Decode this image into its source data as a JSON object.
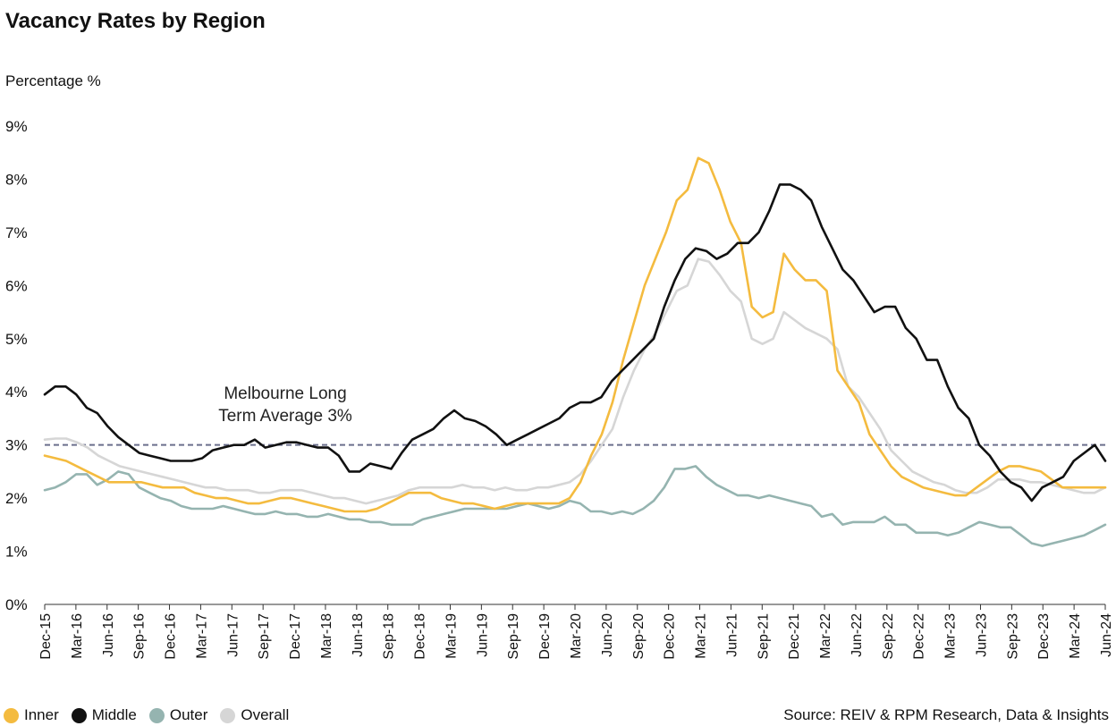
{
  "chart_data": {
    "type": "line",
    "title": "Vacancy Rates by Region",
    "ylabel": "Percentage %",
    "xlabel": "",
    "ylim": [
      0,
      9
    ],
    "yticks": [
      0,
      1,
      2,
      3,
      4,
      5,
      6,
      7,
      8,
      9
    ],
    "ytick_labels": [
      "0%",
      "1%",
      "2%",
      "3%",
      "4%",
      "5%",
      "6%",
      "7%",
      "8%",
      "9%"
    ],
    "xtick_labels": [
      "Dec-15",
      "Mar-16",
      "Jun-16",
      "Sep-16",
      "Dec-16",
      "Mar-17",
      "Jun-17",
      "Sep-17",
      "Dec-17",
      "Mar-18",
      "Jun-18",
      "Sep-18",
      "Dec-18",
      "Mar-19",
      "Jun-19",
      "Sep-19",
      "Dec-19",
      "Mar-20",
      "Jun-20",
      "Sep-20",
      "Dec-20",
      "Mar-21",
      "Jun-21",
      "Sep-21",
      "Dec-21",
      "Mar-22",
      "Jun-22",
      "Sep-22",
      "Dec-22",
      "Mar-23",
      "Jun-23",
      "Sep-23",
      "Dec-23",
      "Mar-24",
      "Jun-24"
    ],
    "grid": false,
    "legend_position": "bottom-left",
    "reference_line": {
      "value": 3.0,
      "label_line1": "Melbourne Long",
      "label_line2": "Term Average 3%",
      "color": "#6b6f8c"
    },
    "series": [
      {
        "name": "Inner",
        "color": "#f4bb3f",
        "values": [
          2.8,
          2.75,
          2.7,
          2.6,
          2.5,
          2.4,
          2.3,
          2.3,
          2.3,
          2.3,
          2.25,
          2.2,
          2.2,
          2.2,
          2.1,
          2.05,
          2.0,
          2.0,
          1.95,
          1.9,
          1.9,
          1.95,
          2.0,
          2.0,
          1.95,
          1.9,
          1.85,
          1.8,
          1.75,
          1.75,
          1.75,
          1.8,
          1.9,
          2.0,
          2.1,
          2.1,
          2.1,
          2.0,
          1.95,
          1.9,
          1.9,
          1.85,
          1.8,
          1.85,
          1.9,
          1.9,
          1.9,
          1.9,
          1.9,
          2.0,
          2.3,
          2.8,
          3.2,
          3.8,
          4.6,
          5.3,
          6.0,
          6.5,
          7.0,
          7.6,
          7.8,
          8.4,
          8.3,
          7.8,
          7.2,
          6.8,
          5.6,
          5.4,
          5.5,
          6.6,
          6.3,
          6.1,
          6.1,
          5.9,
          4.4,
          4.1,
          3.8,
          3.2,
          2.9,
          2.6,
          2.4,
          2.3,
          2.2,
          2.15,
          2.1,
          2.05,
          2.05,
          2.2,
          2.35,
          2.5,
          2.6,
          2.6,
          2.55,
          2.5,
          2.35,
          2.2,
          2.2,
          2.2,
          2.2,
          2.2
        ]
      },
      {
        "name": "Middle",
        "color": "#111111",
        "values": [
          3.95,
          4.1,
          4.1,
          3.95,
          3.7,
          3.6,
          3.35,
          3.15,
          3.0,
          2.85,
          2.8,
          2.75,
          2.7,
          2.7,
          2.7,
          2.75,
          2.9,
          2.95,
          3.0,
          3.0,
          3.1,
          2.95,
          3.0,
          3.05,
          3.05,
          3.0,
          2.95,
          2.95,
          2.8,
          2.5,
          2.5,
          2.65,
          2.6,
          2.55,
          2.85,
          3.1,
          3.2,
          3.3,
          3.5,
          3.65,
          3.5,
          3.45,
          3.35,
          3.2,
          3.0,
          3.1,
          3.2,
          3.3,
          3.4,
          3.5,
          3.7,
          3.8,
          3.8,
          3.9,
          4.2,
          4.4,
          4.6,
          4.8,
          5.0,
          5.6,
          6.1,
          6.5,
          6.7,
          6.65,
          6.5,
          6.6,
          6.8,
          6.8,
          7.0,
          7.4,
          7.9,
          7.9,
          7.8,
          7.6,
          7.1,
          6.7,
          6.3,
          6.1,
          5.8,
          5.5,
          5.6,
          5.6,
          5.2,
          5.0,
          4.6,
          4.6,
          4.1,
          3.7,
          3.5,
          3.0,
          2.8,
          2.5,
          2.3,
          2.2,
          1.95,
          2.2,
          2.3,
          2.4,
          2.7,
          2.85,
          3.0,
          2.7
        ]
      },
      {
        "name": "Outer",
        "color": "#95b4b0",
        "values": [
          2.15,
          2.2,
          2.3,
          2.45,
          2.45,
          2.25,
          2.35,
          2.5,
          2.45,
          2.2,
          2.1,
          2.0,
          1.95,
          1.85,
          1.8,
          1.8,
          1.8,
          1.85,
          1.8,
          1.75,
          1.7,
          1.7,
          1.75,
          1.7,
          1.7,
          1.65,
          1.65,
          1.7,
          1.65,
          1.6,
          1.6,
          1.55,
          1.55,
          1.5,
          1.5,
          1.5,
          1.6,
          1.65,
          1.7,
          1.75,
          1.8,
          1.8,
          1.8,
          1.8,
          1.8,
          1.85,
          1.9,
          1.85,
          1.8,
          1.85,
          1.95,
          1.9,
          1.75,
          1.75,
          1.7,
          1.75,
          1.7,
          1.8,
          1.95,
          2.2,
          2.55,
          2.55,
          2.6,
          2.4,
          2.25,
          2.15,
          2.05,
          2.05,
          2.0,
          2.05,
          2.0,
          1.95,
          1.9,
          1.85,
          1.65,
          1.7,
          1.5,
          1.55,
          1.55,
          1.55,
          1.65,
          1.5,
          1.5,
          1.35,
          1.35,
          1.35,
          1.3,
          1.35,
          1.45,
          1.55,
          1.5,
          1.45,
          1.45,
          1.3,
          1.15,
          1.1,
          1.15,
          1.2,
          1.25,
          1.3,
          1.4,
          1.5
        ]
      },
      {
        "name": "Overall",
        "color": "#d6d6d6",
        "values": [
          3.1,
          3.12,
          3.12,
          3.05,
          2.95,
          2.8,
          2.7,
          2.6,
          2.55,
          2.5,
          2.45,
          2.4,
          2.35,
          2.3,
          2.25,
          2.2,
          2.2,
          2.15,
          2.15,
          2.15,
          2.1,
          2.1,
          2.15,
          2.15,
          2.15,
          2.1,
          2.05,
          2.0,
          2.0,
          1.95,
          1.9,
          1.95,
          2.0,
          2.05,
          2.15,
          2.2,
          2.2,
          2.2,
          2.2,
          2.25,
          2.2,
          2.2,
          2.15,
          2.2,
          2.15,
          2.15,
          2.2,
          2.2,
          2.25,
          2.3,
          2.45,
          2.7,
          3.0,
          3.3,
          3.9,
          4.4,
          4.8,
          5.1,
          5.5,
          5.9,
          6.0,
          6.5,
          6.45,
          6.2,
          5.9,
          5.7,
          5.0,
          4.9,
          5.0,
          5.5,
          5.35,
          5.2,
          5.1,
          5.0,
          4.8,
          4.1,
          3.9,
          3.6,
          3.3,
          2.9,
          2.7,
          2.5,
          2.4,
          2.3,
          2.25,
          2.15,
          2.1,
          2.1,
          2.2,
          2.35,
          2.35,
          2.35,
          2.3,
          2.3,
          2.25,
          2.2,
          2.15,
          2.1,
          2.1,
          2.2
        ]
      }
    ]
  },
  "source": "Source: REIV & RPM Research, Data & Insights"
}
